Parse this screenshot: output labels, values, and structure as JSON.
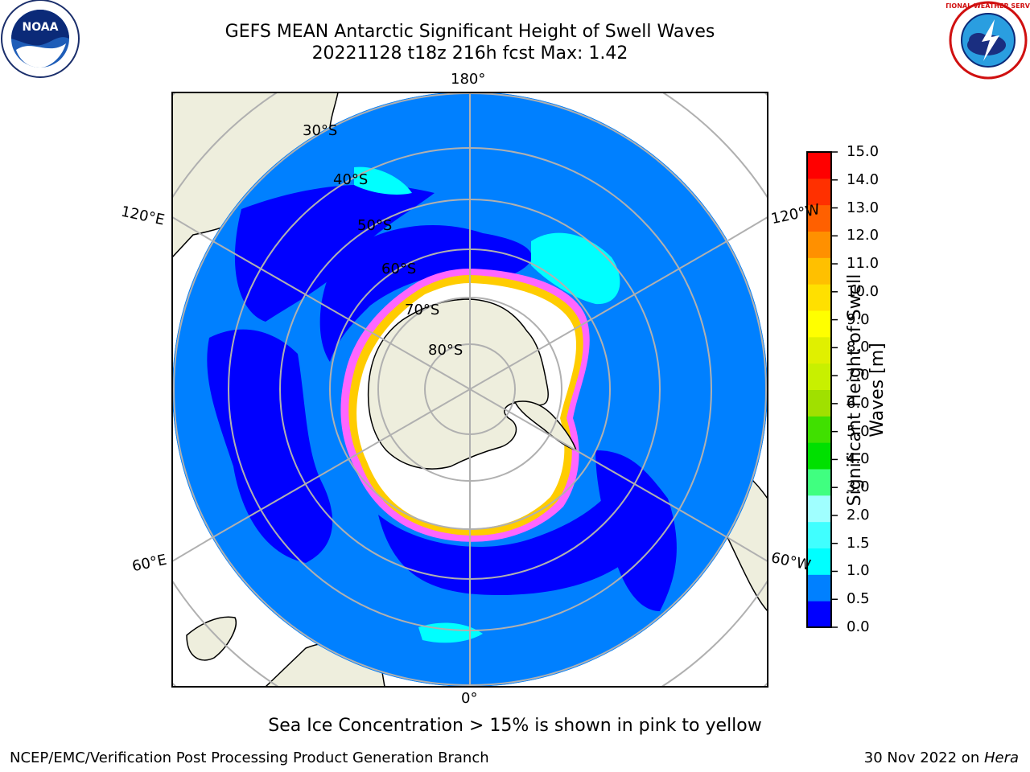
{
  "title_line1": "GEFS MEAN Antarctic Significant Height of Swell Waves",
  "title_line2": "20221128 t18z 216h fcst   Max: 1.42",
  "caption": "Sea Ice Concentration > 15% is shown in pink to yellow",
  "footer_left": "NCEP/EMC/Verification Post Processing Product Generation Branch",
  "footer_right_date": "30 Nov 2022 on ",
  "footer_right_machine": "Hera",
  "logos": {
    "left": {
      "icon": "noaa-logo",
      "text": "NOAA"
    },
    "right": {
      "icon": "nws-logo",
      "text": "NATIONAL WEATHER SERVICE"
    }
  },
  "map": {
    "projection": "south-polar-stereographic",
    "lon_labels": [
      "180°",
      "120°E",
      "120°W",
      "60°E",
      "60°W",
      "0°"
    ],
    "lat_labels": [
      "30°S",
      "40°S",
      "50°S",
      "60°S",
      "70°S",
      "80°S"
    ],
    "colors": {
      "ocean_low": "#0000ff",
      "ocean_mid": "#0080ff",
      "ocean_cyan": "#00ffff",
      "land": "#eeeedd",
      "ice_edge_pink": "#ff66ff",
      "ice_edge_yellow": "#ffcc00",
      "gridline": "#b0b0b0"
    }
  },
  "colorbar": {
    "label": "Significant Height of Swell Waves [m]",
    "ticks": [
      "15.0",
      "14.0",
      "13.0",
      "12.0",
      "11.0",
      "10.0",
      "9.0",
      "8.0",
      "7.0",
      "6.0",
      "5.0",
      "4.0",
      "3.0",
      "2.0",
      "1.5",
      "1.0",
      "0.5",
      "0.0"
    ],
    "colors": [
      "#0000ff",
      "#0080ff",
      "#00ffff",
      "#40ffff",
      "#a0ffff",
      "#40ff80",
      "#00e000",
      "#40e000",
      "#a0e000",
      "#c8f000",
      "#e0f000",
      "#ffff00",
      "#ffe000",
      "#ffc000",
      "#ff9000",
      "#ff6000",
      "#ff3000",
      "#ff0000"
    ]
  }
}
